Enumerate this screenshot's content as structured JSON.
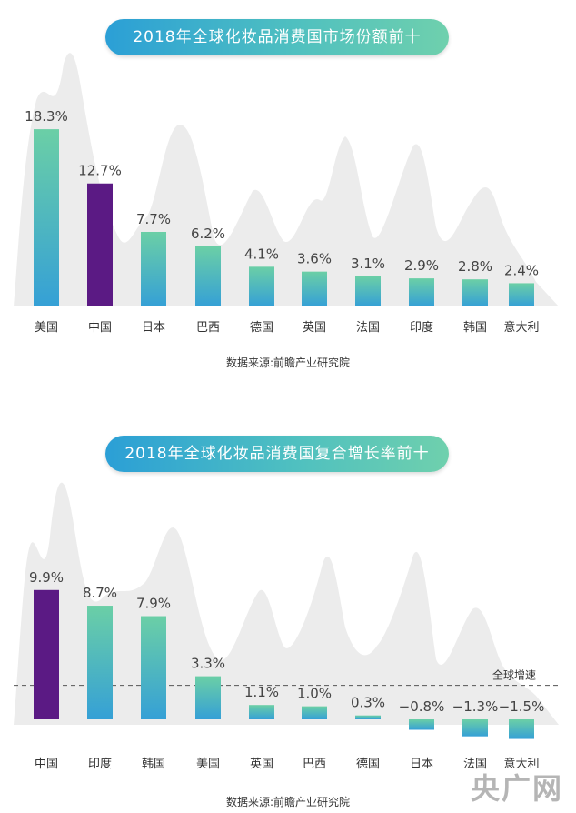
{
  "charts": {
    "share": {
      "title": "2018年全球化妆品消费国市场份额前十",
      "source": "数据来源:前瞻产业研究院"
    },
    "growth": {
      "title": "2018年全球化妆品消费国复合增长率前十",
      "source": "数据来源:前瞻产业研究院",
      "ref_label": "全球增速"
    }
  },
  "watermark": "央广网",
  "colors": {
    "highlight": "#5b1a84",
    "bar_top": "#6bcfa6",
    "bar_bottom": "#35a0d6",
    "background_shape": "#ececec"
  },
  "chart_data": [
    {
      "type": "bar",
      "title": "2018年全球化妆品消费国市场份额前十",
      "categories": [
        "美国",
        "中国",
        "日本",
        "巴西",
        "德国",
        "英国",
        "法国",
        "印度",
        "韩国",
        "意大利"
      ],
      "values": [
        18.3,
        12.7,
        7.7,
        6.2,
        4.1,
        3.6,
        3.1,
        2.9,
        2.8,
        2.4
      ],
      "data_labels": [
        "18.3%",
        "12.7%",
        "7.7%",
        "6.2%",
        "4.1%",
        "3.6%",
        "3.1%",
        "2.9%",
        "2.8%",
        "2.4%"
      ],
      "highlight_category": "中国",
      "unit": "%",
      "ylim": [
        0,
        20
      ],
      "grid": false,
      "legend": "none"
    },
    {
      "type": "bar",
      "title": "2018年全球化妆品消费国复合增长率前十",
      "categories": [
        "中国",
        "印度",
        "韩国",
        "美国",
        "英国",
        "巴西",
        "德国",
        "日本",
        "法国",
        "意大利"
      ],
      "values": [
        9.9,
        8.7,
        7.9,
        3.3,
        1.1,
        1.0,
        0.3,
        -0.8,
        -1.3,
        -1.5
      ],
      "data_labels": [
        "9.9%",
        "8.7%",
        "7.9%",
        "3.3%",
        "1.1%",
        "1.0%",
        "0.3%",
        "−0.8%",
        "−1.3%",
        "−1.5%"
      ],
      "highlight_category": "中国",
      "reference_line": {
        "label": "全球增速",
        "value": 2.6
      },
      "unit": "%",
      "ylim": [
        -2,
        11
      ],
      "grid": false,
      "legend": "none"
    }
  ]
}
